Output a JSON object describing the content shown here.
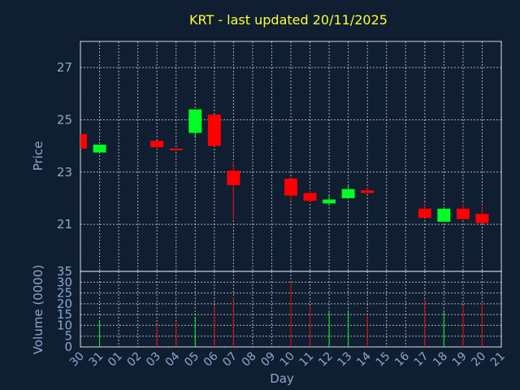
{
  "chart_data": [
    {
      "type": "candlestick",
      "title": "KRT - last updated 20/11/2025",
      "ylabel": "Price",
      "ylim": [
        19.2,
        28.0
      ],
      "yticks": [
        21,
        23,
        25,
        27
      ],
      "grid": true,
      "colors": {
        "up": "#00ff22",
        "down": "#ff0000"
      },
      "candles": [
        {
          "day": "30",
          "open": 24.45,
          "close": 23.9,
          "high": 24.45,
          "low": 23.9
        },
        {
          "day": "31",
          "open": 23.75,
          "close": 24.05,
          "high": 24.05,
          "low": 23.75
        },
        {
          "day": "03",
          "open": 24.2,
          "close": 23.95,
          "high": 24.2,
          "low": 23.85
        },
        {
          "day": "04",
          "open": 23.9,
          "close": 23.85,
          "high": 23.9,
          "low": 23.8
        },
        {
          "day": "05",
          "open": 24.5,
          "close": 25.4,
          "high": 25.4,
          "low": 24.3
        },
        {
          "day": "06",
          "open": 25.2,
          "close": 24.0,
          "high": 25.2,
          "low": 24.0
        },
        {
          "day": "07",
          "open": 23.05,
          "close": 22.5,
          "high": 23.4,
          "low": 21.2
        },
        {
          "day": "10",
          "open": 22.75,
          "close": 22.1,
          "high": 22.75,
          "low": 21.9
        },
        {
          "day": "11",
          "open": 22.2,
          "close": 21.9,
          "high": 22.3,
          "low": 21.85
        },
        {
          "day": "12",
          "open": 21.8,
          "close": 21.95,
          "high": 22.1,
          "low": 21.7
        },
        {
          "day": "13",
          "open": 22.0,
          "close": 22.35,
          "high": 22.5,
          "low": 22.0
        },
        {
          "day": "14",
          "open": 22.3,
          "close": 22.2,
          "high": 22.4,
          "low": 22.15
        },
        {
          "day": "17",
          "open": 21.6,
          "close": 21.25,
          "high": 21.8,
          "low": 21.25
        },
        {
          "day": "18",
          "open": 21.1,
          "close": 21.6,
          "high": 21.6,
          "low": 21.1
        },
        {
          "day": "19",
          "open": 21.6,
          "close": 21.2,
          "high": 21.8,
          "low": 21.2
        },
        {
          "day": "20",
          "open": 21.4,
          "close": 21.05,
          "high": 21.75,
          "low": 21.05
        }
      ]
    },
    {
      "type": "bar",
      "ylabel": "Volume (0000)",
      "xlabel": "Day",
      "ylim": [
        0,
        35
      ],
      "yticks": [
        0,
        5,
        10,
        15,
        20,
        25,
        30,
        35
      ],
      "grid": true,
      "categories": [
        "30",
        "31",
        "01",
        "02",
        "03",
        "04",
        "05",
        "06",
        "07",
        "08",
        "09",
        "10",
        "11",
        "12",
        "13",
        "14",
        "15",
        "16",
        "17",
        "18",
        "19",
        "20",
        "21"
      ],
      "bars": [
        {
          "day": "31",
          "value": 12,
          "color": "#00ff22"
        },
        {
          "day": "03",
          "value": 10,
          "color": "#ff0000"
        },
        {
          "day": "04",
          "value": 12,
          "color": "#ff0000"
        },
        {
          "day": "05",
          "value": 14,
          "color": "#00ff22"
        },
        {
          "day": "06",
          "value": 19,
          "color": "#ff0000"
        },
        {
          "day": "07",
          "value": 23,
          "color": "#ff0000"
        },
        {
          "day": "10",
          "value": 30,
          "color": "#ff0000"
        },
        {
          "day": "11",
          "value": 19,
          "color": "#ff0000"
        },
        {
          "day": "12",
          "value": 17,
          "color": "#00ff22"
        },
        {
          "day": "13",
          "value": 17,
          "color": "#00ff22"
        },
        {
          "day": "14",
          "value": 15,
          "color": "#ff0000"
        },
        {
          "day": "17",
          "value": 22,
          "color": "#ff0000"
        },
        {
          "day": "18",
          "value": 17,
          "color": "#00ff22"
        },
        {
          "day": "19",
          "value": 19,
          "color": "#ff0000"
        },
        {
          "day": "20",
          "value": 20,
          "color": "#ff0000"
        }
      ]
    }
  ]
}
